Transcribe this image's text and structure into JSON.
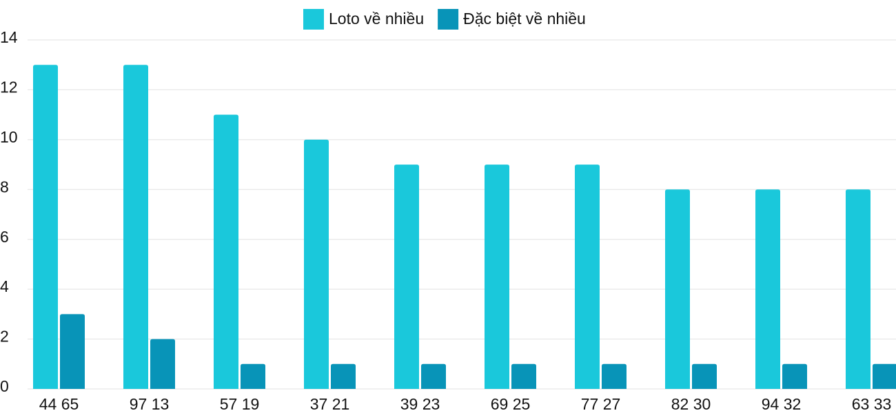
{
  "chart_data": {
    "type": "bar",
    "categories": [
      "44 65",
      "97 13",
      "57 19",
      "37 21",
      "39 23",
      "69 25",
      "77 27",
      "82 30",
      "94 32",
      "63 33"
    ],
    "series": [
      {
        "name": "Loto về nhiều",
        "color": "#1ac8db",
        "values": [
          13,
          13,
          11,
          10,
          9,
          9,
          9,
          8,
          8,
          8
        ]
      },
      {
        "name": "Đặc biệt về nhiều",
        "color": "#0894b8",
        "values": [
          3,
          2,
          1,
          1,
          1,
          1,
          1,
          1,
          1,
          1
        ]
      }
    ],
    "ylim": [
      0,
      14
    ],
    "yticks": [
      0,
      2,
      4,
      6,
      8,
      10,
      12,
      14
    ],
    "grid": true,
    "legend": "top"
  }
}
